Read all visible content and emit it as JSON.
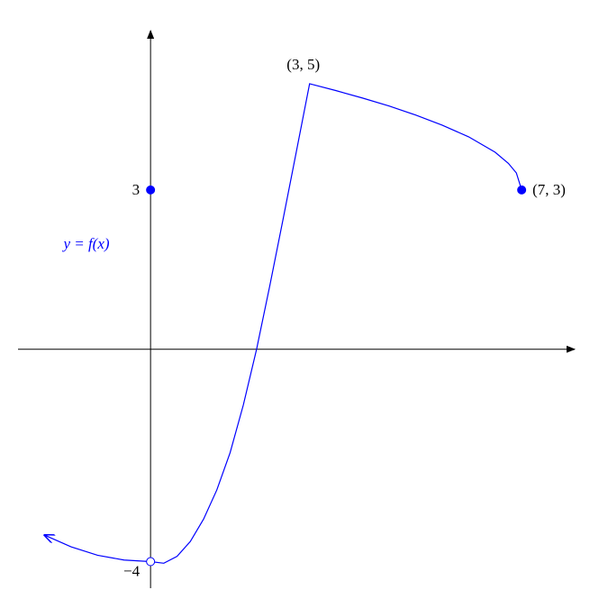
{
  "chart_data": {
    "type": "function",
    "xlim": [
      -2.5,
      8
    ],
    "ylim": [
      -4.5,
      6
    ],
    "yticks": [
      {
        "value": -4,
        "label": "−4"
      },
      3
    ],
    "series": [
      {
        "name": "y = f(x)",
        "color": "#0000ff",
        "x": [
          -2,
          -1.5,
          -1,
          -0.5,
          0,
          0.25,
          0.5,
          0.75,
          1,
          1.25,
          1.5,
          1.75,
          2,
          2.25,
          2.5,
          2.75,
          3,
          3.5,
          4,
          4.5,
          5,
          5.5,
          6,
          6.5,
          6.75,
          6.9,
          7
        ],
        "values": [
          -3.5,
          -3.72,
          -3.88,
          -3.97,
          -4,
          -4.03,
          -3.9,
          -3.62,
          -3.2,
          -2.65,
          -1.95,
          -1.05,
          0,
          1.2,
          2.45,
          3.72,
          5,
          4.87,
          4.73,
          4.58,
          4.41,
          4.22,
          4,
          3.71,
          3.5,
          3.32,
          3
        ]
      }
    ],
    "points": [
      {
        "x": 0,
        "y": 3,
        "filled": true
      },
      {
        "x": 0,
        "y": -4,
        "filled": false
      },
      {
        "x": 7,
        "y": 3,
        "filled": true
      }
    ],
    "annotations": [
      {
        "text": "(3, 5)",
        "x": 3,
        "y": 5
      },
      {
        "text": "(7, 3)",
        "x": 7,
        "y": 3
      }
    ]
  }
}
